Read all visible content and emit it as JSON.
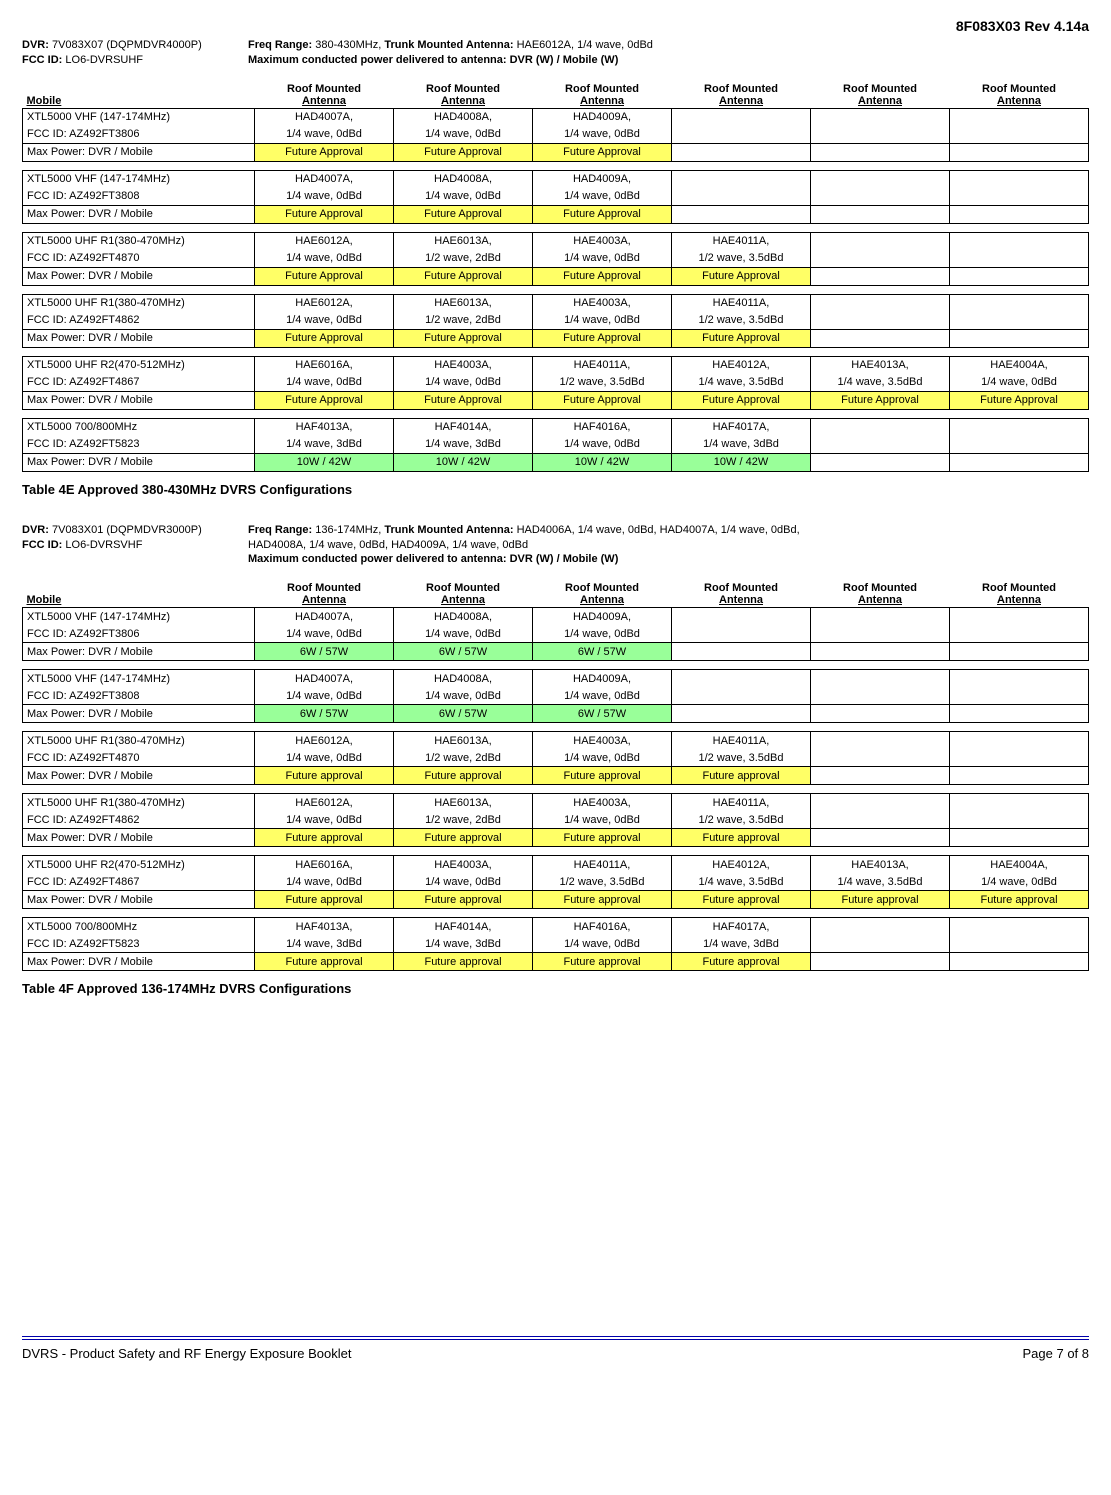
{
  "doc_rev": "8F083X03 Rev 4.14a",
  "footer_left": "DVRS - Product Safety and RF Energy Exposure Booklet",
  "footer_right": "Page 7 of 8",
  "colors": {
    "future": "#ffff66",
    "approved": "#99ff99",
    "rule": "#0000aa"
  },
  "column_headers": [
    "Roof Mounted Antenna",
    "Roof Mounted Antenna",
    "Roof Mounted Antenna",
    "Roof Mounted Antenna",
    "Roof Mounted Antenna",
    "Roof Mounted Antenna"
  ],
  "mobile_header": "Mobile",
  "tableE": {
    "intro": {
      "dvr_label": "DVR:",
      "dvr_value": "7V083X07 (DQPMDVR4000P)",
      "fcc_label": "FCC ID:",
      "fcc_value": "LO6-DVRSUHF",
      "freq_label": "Freq Range:",
      "freq_value": "380-430MHz,",
      "trunk_label": "Trunk Mounted Antenna:",
      "trunk_value": "HAE6012A, 1/4 wave, 0dBd",
      "maxpwr": "Maximum conducted power delivered to antenna:  DVR (W) / Mobile (W)"
    },
    "caption": "Table 4E Approved 380-430MHz DVRS Configurations",
    "groups": [
      {
        "label1": "XTL5000 VHF (147-174MHz)",
        "label2": "FCC ID: AZ492FT3806",
        "row1": [
          "HAD4007A,",
          "HAD4008A,",
          "HAD4009A,",
          "",
          "",
          ""
        ],
        "row2": [
          "1/4 wave, 0dBd",
          "1/4 wave, 0dBd",
          "1/4 wave, 0dBd",
          "",
          "",
          ""
        ],
        "pwr_label": "Max Power:  DVR / Mobile",
        "pwr": [
          "Future Approval",
          "Future Approval",
          "Future Approval",
          "",
          "",
          ""
        ],
        "pwr_class": [
          "yellow",
          "yellow",
          "yellow",
          "",
          "",
          ""
        ]
      },
      {
        "label1": "XTL5000 VHF (147-174MHz)",
        "label2": "FCC ID: AZ492FT3808",
        "row1": [
          "HAD4007A,",
          "HAD4008A,",
          "HAD4009A,",
          "",
          "",
          ""
        ],
        "row2": [
          "1/4 wave, 0dBd",
          "1/4 wave, 0dBd",
          "1/4 wave, 0dBd",
          "",
          "",
          ""
        ],
        "pwr_label": "Max Power:  DVR / Mobile",
        "pwr": [
          "Future Approval",
          "Future Approval",
          "Future Approval",
          "",
          "",
          ""
        ],
        "pwr_class": [
          "yellow",
          "yellow",
          "yellow",
          "",
          "",
          ""
        ]
      },
      {
        "label1": "XTL5000 UHF R1(380-470MHz)",
        "label2": "FCC ID: AZ492FT4870",
        "row1": [
          "HAE6012A,",
          "HAE6013A,",
          "HAE4003A,",
          "HAE4011A,",
          "",
          ""
        ],
        "row2": [
          "1/4 wave, 0dBd",
          "1/2 wave, 2dBd",
          "1/4 wave, 0dBd",
          "1/2 wave, 3.5dBd",
          "",
          ""
        ],
        "pwr_label": "Max Power:  DVR / Mobile",
        "pwr": [
          "Future Approval",
          "Future Approval",
          "Future Approval",
          "Future Approval",
          "",
          ""
        ],
        "pwr_class": [
          "yellow",
          "yellow",
          "yellow",
          "yellow",
          "",
          ""
        ]
      },
      {
        "label1": "XTL5000 UHF R1(380-470MHz)",
        "label2": "FCC ID: AZ492FT4862",
        "row1": [
          "HAE6012A,",
          "HAE6013A,",
          "HAE4003A,",
          "HAE4011A,",
          "",
          ""
        ],
        "row2": [
          "1/4 wave, 0dBd",
          "1/2 wave, 2dBd",
          "1/4 wave, 0dBd",
          "1/2 wave, 3.5dBd",
          "",
          ""
        ],
        "pwr_label": "Max Power:  DVR / Mobile",
        "pwr": [
          "Future Approval",
          "Future Approval",
          "Future Approval",
          "Future Approval",
          "",
          ""
        ],
        "pwr_class": [
          "yellow",
          "yellow",
          "yellow",
          "yellow",
          "",
          ""
        ]
      },
      {
        "label1": "XTL5000 UHF R2(470-512MHz)",
        "label2": "FCC ID: AZ492FT4867",
        "row1": [
          "HAE6016A,",
          "HAE4003A,",
          "HAE4011A,",
          "HAE4012A,",
          "HAE4013A,",
          "HAE4004A,"
        ],
        "row2": [
          "1/4 wave, 0dBd",
          "1/4 wave, 0dBd",
          "1/2 wave, 3.5dBd",
          "1/4 wave, 3.5dBd",
          "1/4 wave, 3.5dBd",
          "1/4 wave, 0dBd"
        ],
        "pwr_label": "Max Power:  DVR / Mobile",
        "pwr": [
          "Future Approval",
          "Future Approval",
          "Future Approval",
          "Future Approval",
          "Future Approval",
          "Future Approval"
        ],
        "pwr_class": [
          "yellow",
          "yellow",
          "yellow",
          "yellow",
          "yellow",
          "yellow"
        ]
      },
      {
        "label1": "XTL5000 700/800MHz",
        "label2": "FCC ID: AZ492FT5823",
        "row1": [
          "HAF4013A,",
          "HAF4014A,",
          "HAF4016A,",
          "HAF4017A,",
          "",
          ""
        ],
        "row2": [
          "1/4 wave, 3dBd",
          "1/4 wave, 3dBd",
          "1/4 wave, 0dBd",
          "1/4 wave, 3dBd",
          "",
          ""
        ],
        "pwr_label": "Max Power:  DVR / Mobile",
        "pwr": [
          "10W / 42W",
          "10W / 42W",
          "10W / 42W",
          "10W / 42W",
          "",
          ""
        ],
        "pwr_class": [
          "green",
          "green",
          "green",
          "green",
          "",
          ""
        ]
      }
    ]
  },
  "tableF": {
    "intro": {
      "dvr_label": "DVR:",
      "dvr_value": "7V083X01 (DQPMDVR3000P)",
      "fcc_label": "FCC ID:",
      "fcc_value": "LO6-DVRSVHF",
      "freq_label": "Freq Range:",
      "freq_value": "136-174MHz,",
      "trunk_label": "Trunk Mounted Antenna:",
      "trunk_value": "HAD4006A, 1/4 wave, 0dBd, HAD4007A, 1/4 wave, 0dBd,",
      "trunk_value2": "HAD4008A, 1/4 wave, 0dBd, HAD4009A, 1/4 wave, 0dBd",
      "maxpwr": "Maximum conducted power delivered to antenna:  DVR (W) / Mobile (W)"
    },
    "caption": "Table 4F Approved 136-174MHz DVRS Configurations",
    "groups": [
      {
        "label1": "XTL5000 VHF (147-174MHz)",
        "label2": "FCC ID: AZ492FT3806",
        "row1": [
          "HAD4007A,",
          "HAD4008A,",
          "HAD4009A,",
          "",
          "",
          ""
        ],
        "row2": [
          "1/4 wave, 0dBd",
          "1/4 wave, 0dBd",
          "1/4 wave, 0dBd",
          "",
          "",
          ""
        ],
        "pwr_label": "Max Power:  DVR / Mobile",
        "pwr": [
          "6W / 57W",
          "6W / 57W",
          "6W / 57W",
          "",
          "",
          ""
        ],
        "pwr_class": [
          "green",
          "green",
          "green",
          "",
          "",
          ""
        ]
      },
      {
        "label1": "XTL5000 VHF (147-174MHz)",
        "label2": "FCC ID: AZ492FT3808",
        "row1": [
          "HAD4007A,",
          "HAD4008A,",
          "HAD4009A,",
          "",
          "",
          ""
        ],
        "row2": [
          "1/4 wave, 0dBd",
          "1/4 wave, 0dBd",
          "1/4 wave, 0dBd",
          "",
          "",
          ""
        ],
        "pwr_label": "Max Power:  DVR / Mobile",
        "pwr": [
          "6W / 57W",
          "6W / 57W",
          "6W / 57W",
          "",
          "",
          ""
        ],
        "pwr_class": [
          "green",
          "green",
          "green",
          "",
          "",
          ""
        ]
      },
      {
        "label1": "XTL5000 UHF R1(380-470MHz)",
        "label2": "FCC ID: AZ492FT4870",
        "row1": [
          "HAE6012A,",
          "HAE6013A,",
          "HAE4003A,",
          "HAE4011A,",
          "",
          ""
        ],
        "row2": [
          "1/4 wave, 0dBd",
          "1/2 wave, 2dBd",
          "1/4 wave, 0dBd",
          "1/2 wave, 3.5dBd",
          "",
          ""
        ],
        "pwr_label": "Max Power:  DVR / Mobile",
        "pwr": [
          "Future approval",
          "Future approval",
          "Future approval",
          "Future approval",
          "",
          ""
        ],
        "pwr_class": [
          "yellow",
          "yellow",
          "yellow",
          "yellow",
          "",
          ""
        ]
      },
      {
        "label1": "XTL5000 UHF R1(380-470MHz)",
        "label2": "FCC ID: AZ492FT4862",
        "row1": [
          "HAE6012A,",
          "HAE6013A,",
          "HAE4003A,",
          "HAE4011A,",
          "",
          ""
        ],
        "row2": [
          "1/4 wave, 0dBd",
          "1/2 wave, 2dBd",
          "1/4 wave, 0dBd",
          "1/2 wave, 3.5dBd",
          "",
          ""
        ],
        "pwr_label": "Max Power:  DVR / Mobile",
        "pwr": [
          "Future approval",
          "Future approval",
          "Future approval",
          "Future approval",
          "",
          ""
        ],
        "pwr_class": [
          "yellow",
          "yellow",
          "yellow",
          "yellow",
          "",
          ""
        ]
      },
      {
        "label1": "XTL5000 UHF R2(470-512MHz)",
        "label2": "FCC ID: AZ492FT4867",
        "row1": [
          "HAE6016A,",
          "HAE4003A,",
          "HAE4011A,",
          "HAE4012A,",
          "HAE4013A,",
          "HAE4004A,"
        ],
        "row2": [
          "1/4 wave, 0dBd",
          "1/4 wave, 0dBd",
          "1/2 wave, 3.5dBd",
          "1/4 wave, 3.5dBd",
          "1/4 wave, 3.5dBd",
          "1/4 wave, 0dBd"
        ],
        "pwr_label": "Max Power:  DVR / Mobile",
        "pwr": [
          "Future approval",
          "Future approval",
          "Future approval",
          "Future approval",
          "Future approval",
          "Future approval"
        ],
        "pwr_class": [
          "yellow",
          "yellow",
          "yellow",
          "yellow",
          "yellow",
          "yellow"
        ]
      },
      {
        "label1": "XTL5000 700/800MHz",
        "label2": "FCC ID: AZ492FT5823",
        "row1": [
          "HAF4013A,",
          "HAF4014A,",
          "HAF4016A,",
          "HAF4017A,",
          "",
          ""
        ],
        "row2": [
          "1/4 wave, 3dBd",
          "1/4 wave, 3dBd",
          "1/4 wave, 0dBd",
          "1/4 wave, 3dBd",
          "",
          ""
        ],
        "pwr_label": "Max Power:  DVR / Mobile",
        "pwr": [
          "Future approval",
          "Future approval",
          "Future approval",
          "Future approval",
          "",
          ""
        ],
        "pwr_class": [
          "yellow",
          "yellow",
          "yellow",
          "yellow",
          "",
          ""
        ]
      }
    ]
  }
}
